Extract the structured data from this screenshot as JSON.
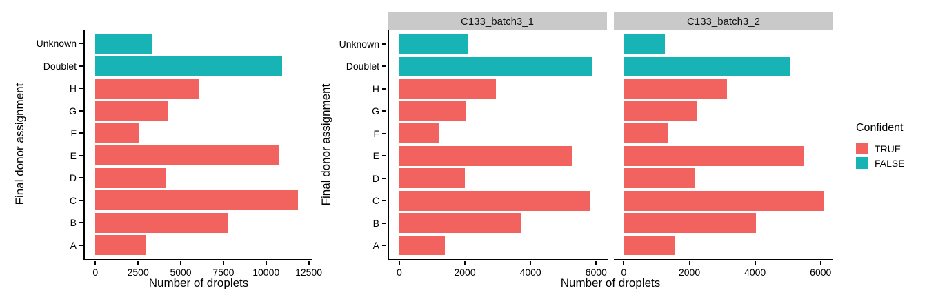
{
  "legend": {
    "title": "Confident",
    "items": [
      {
        "label": "TRUE",
        "value": true,
        "color": "#F2625E"
      },
      {
        "label": "FALSE",
        "value": false,
        "color": "#18B3B5"
      }
    ]
  },
  "chart_data": [
    {
      "type": "bar",
      "orientation": "horizontal",
      "panel": "combined",
      "facet_label": "",
      "xlabel": "Number of droplets",
      "ylabel": "Final donor assignment",
      "categories_top_to_bottom": [
        "Unknown",
        "Doublet",
        "H",
        "G",
        "F",
        "E",
        "D",
        "C",
        "B",
        "A"
      ],
      "confident_top_to_bottom": [
        false,
        false,
        true,
        true,
        true,
        true,
        true,
        true,
        true,
        true
      ],
      "values": [
        3350,
        10950,
        6100,
        4300,
        2550,
        10800,
        4150,
        11900,
        7750,
        2950
      ],
      "x_ticks": [
        0,
        2500,
        5000,
        7500,
        10000,
        12500
      ],
      "x_domain": [
        -600,
        12700
      ],
      "grid": false,
      "legend_position": "none"
    },
    {
      "type": "bar",
      "orientation": "horizontal",
      "panel": "facet-1",
      "facet_label": "C133_batch3_1",
      "xlabel": "Number of droplets",
      "ylabel": "Final donor assignment",
      "categories_top_to_bottom": [
        "Unknown",
        "Doublet",
        "H",
        "G",
        "F",
        "E",
        "D",
        "C",
        "B",
        "A"
      ],
      "confident_top_to_bottom": [
        false,
        false,
        true,
        true,
        true,
        true,
        true,
        true,
        true,
        true
      ],
      "values": [
        2100,
        5900,
        2950,
        2050,
        1200,
        5300,
        2000,
        5820,
        3720,
        1400
      ],
      "x_ticks": [
        0,
        2000,
        4000,
        6000
      ],
      "x_domain": [
        -304,
        6384
      ],
      "grid": false,
      "legend_position": "right"
    },
    {
      "type": "bar",
      "orientation": "horizontal",
      "panel": "facet-2",
      "facet_label": "C133_batch3_2",
      "xlabel": "Number of droplets",
      "ylabel": "Final donor assignment",
      "categories_top_to_bottom": [
        "Unknown",
        "Doublet",
        "H",
        "G",
        "F",
        "E",
        "D",
        "C",
        "B",
        "A"
      ],
      "confident_top_to_bottom": [
        false,
        false,
        true,
        true,
        true,
        true,
        true,
        true,
        true,
        true
      ],
      "values": [
        1250,
        5050,
        3150,
        2250,
        1350,
        5500,
        2150,
        6080,
        4030,
        1550
      ],
      "x_ticks": [
        0,
        2000,
        4000,
        6000
      ],
      "x_domain": [
        -304,
        6384
      ],
      "grid": false,
      "legend_position": "right"
    }
  ]
}
